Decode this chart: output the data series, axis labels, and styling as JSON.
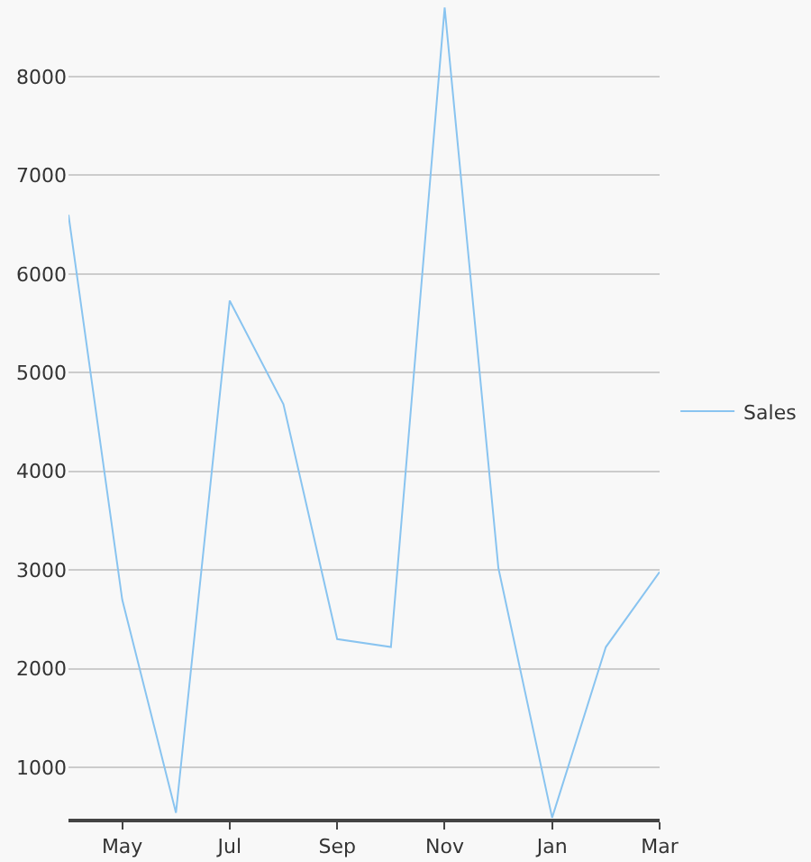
{
  "chart_data": {
    "type": "line",
    "categories": [
      null,
      "May",
      null,
      "Jul",
      null,
      "Sep",
      null,
      "Nov",
      null,
      "Jan",
      null,
      "Mar"
    ],
    "series": [
      {
        "name": "Sales",
        "color": "#89c4f0",
        "values": [
          6600,
          2700,
          540,
          5730,
          4680,
          2300,
          2220,
          8700,
          3020,
          490,
          2220,
          2980
        ]
      }
    ],
    "ylim": [
      480,
      8740
    ],
    "yticks": [
      1000,
      2000,
      3000,
      4000,
      5000,
      6000,
      7000,
      8000
    ],
    "grid": "y",
    "legend": "right",
    "marker": "none",
    "line_style": "solid"
  }
}
